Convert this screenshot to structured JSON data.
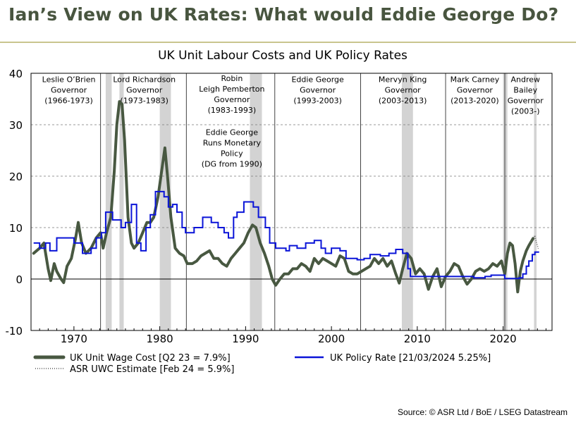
{
  "slide": {
    "title": "Ian’s View on UK Rates: What would Eddie George Do?",
    "source": "Source: © ASR Ltd  / BoE / LSEG Datastream"
  },
  "colors": {
    "wage": "#485841",
    "policy": "#0a14d8",
    "shade": "#d3d3d3",
    "title": "#48553f",
    "rule": "#c9c58e"
  },
  "chart_data": {
    "type": "line",
    "title": "UK Unit Labour Costs and UK Policy Rates",
    "xlim": [
      1965,
      2025.7
    ],
    "ylim": [
      -10,
      40
    ],
    "yticks": [
      40,
      30,
      20,
      10,
      0,
      -10
    ],
    "xticks": [
      1970,
      1980,
      1990,
      2000,
      2010,
      2020
    ],
    "grid": "horizontal dashed",
    "recessions": [
      [
        1973.7,
        1974.4
      ],
      [
        1975.3,
        1975.8
      ],
      [
        1980.0,
        1981.3
      ],
      [
        1990.5,
        1991.9
      ],
      [
        2008.2,
        2009.5
      ],
      [
        2020.0,
        2020.5
      ],
      [
        2023.6,
        2023.9
      ]
    ],
    "governor_boundaries": [
      1973.1,
      1983.1,
      1993.4,
      2003.4,
      2013.3,
      2020.2
    ],
    "annotations": [
      {
        "lines": [
          "Leslie O’Brien",
          "Governor",
          "(1966-1973)"
        ],
        "x": 1969.4,
        "y": 38.3
      },
      {
        "lines": [
          "Lord Richardson",
          "Governor",
          "(1973-1983)"
        ],
        "x": 1978.2,
        "y": 38.3
      },
      {
        "lines": [
          "Robin",
          "Leigh Pemberton",
          "Governor",
          "(1983-1993)"
        ],
        "x": 1988.4,
        "y": 38.5
      },
      {
        "lines": [
          "Eddie George",
          "Runs Monetary",
          "Policy",
          "(DG from 1990)"
        ],
        "x": 1988.4,
        "y": 28.0
      },
      {
        "lines": [
          "Eddie George",
          "Governor",
          "(1993-2003)"
        ],
        "x": 1998.4,
        "y": 38.3
      },
      {
        "lines": [
          "Mervyn King",
          "Governor",
          "(2003-2013)"
        ],
        "x": 2008.3,
        "y": 38.3
      },
      {
        "lines": [
          "Mark Carney",
          "Governor",
          "(2013-2020)"
        ],
        "x": 2016.7,
        "y": 38.3
      },
      {
        "lines": [
          "Andrew",
          "Bailey",
          "Governor",
          "(2003-)"
        ],
        "x": 2022.6,
        "y": 38.3
      }
    ],
    "series": [
      {
        "name": "UK Unit Wage Cost",
        "legend": "UK Unit Wage Cost  [Q2 23 = 7.9%]",
        "style": "thick",
        "points": [
          [
            1965.3,
            5.0
          ],
          [
            1966,
            6.0
          ],
          [
            1966.5,
            7.0
          ],
          [
            1967,
            2.0
          ],
          [
            1967.3,
            -0.3
          ],
          [
            1967.7,
            3.0
          ],
          [
            1968,
            1.5
          ],
          [
            1968.5,
            0.0
          ],
          [
            1968.8,
            -0.7
          ],
          [
            1969.2,
            2.5
          ],
          [
            1969.7,
            4.0
          ],
          [
            1970.2,
            8.0
          ],
          [
            1970.5,
            11.0
          ],
          [
            1970.9,
            7.0
          ],
          [
            1971.4,
            5.0
          ],
          [
            1972,
            6.0
          ],
          [
            1972.6,
            8.0
          ],
          [
            1973.1,
            9.0
          ],
          [
            1973.4,
            6.0
          ],
          [
            1973.8,
            9.0
          ],
          [
            1974.3,
            12.0
          ],
          [
            1974.7,
            21.0
          ],
          [
            1975.0,
            30.0
          ],
          [
            1975.3,
            34.5
          ],
          [
            1975.6,
            34.0
          ],
          [
            1975.9,
            27.0
          ],
          [
            1976.3,
            12.0
          ],
          [
            1976.7,
            7.0
          ],
          [
            1977.0,
            6.0
          ],
          [
            1977.5,
            7.0
          ],
          [
            1978.0,
            9.0
          ],
          [
            1978.5,
            11.0
          ],
          [
            1978.9,
            11.0
          ],
          [
            1979.3,
            12.0
          ],
          [
            1979.8,
            16.0
          ],
          [
            1980.3,
            22.0
          ],
          [
            1980.6,
            25.5
          ],
          [
            1980.9,
            20.0
          ],
          [
            1981.3,
            12.0
          ],
          [
            1981.8,
            6.0
          ],
          [
            1982.3,
            5.0
          ],
          [
            1982.8,
            4.5
          ],
          [
            1983.2,
            3.0
          ],
          [
            1983.8,
            3.0
          ],
          [
            1984.3,
            3.5
          ],
          [
            1984.8,
            4.5
          ],
          [
            1985.3,
            5.0
          ],
          [
            1985.8,
            5.5
          ],
          [
            1986.3,
            4.0
          ],
          [
            1986.8,
            4.0
          ],
          [
            1987.3,
            3.0
          ],
          [
            1987.8,
            2.5
          ],
          [
            1988.3,
            4.0
          ],
          [
            1988.8,
            5.0
          ],
          [
            1989.3,
            6.0
          ],
          [
            1989.8,
            7.0
          ],
          [
            1990.3,
            9.0
          ],
          [
            1990.8,
            10.5
          ],
          [
            1991.2,
            10.0
          ],
          [
            1991.7,
            7.0
          ],
          [
            1992.2,
            5.0
          ],
          [
            1992.7,
            2.5
          ],
          [
            1993.1,
            0.0
          ],
          [
            1993.5,
            -1.2
          ],
          [
            1994.0,
            0.0
          ],
          [
            1994.5,
            1.0
          ],
          [
            1995.0,
            1.0
          ],
          [
            1995.5,
            2.0
          ],
          [
            1996.0,
            2.0
          ],
          [
            1996.5,
            3.0
          ],
          [
            1997.0,
            2.5
          ],
          [
            1997.5,
            1.5
          ],
          [
            1998.0,
            4.0
          ],
          [
            1998.5,
            3.0
          ],
          [
            1999.0,
            4.0
          ],
          [
            1999.5,
            3.5
          ],
          [
            2000.0,
            3.0
          ],
          [
            2000.5,
            2.5
          ],
          [
            2001.0,
            4.5
          ],
          [
            2001.5,
            4.0
          ],
          [
            2002.0,
            1.5
          ],
          [
            2002.5,
            1.0
          ],
          [
            2003.0,
            1.0
          ],
          [
            2003.5,
            1.5
          ],
          [
            2004.0,
            2.0
          ],
          [
            2004.5,
            2.5
          ],
          [
            2005.0,
            4.0
          ],
          [
            2005.5,
            3.0
          ],
          [
            2006.0,
            4.0
          ],
          [
            2006.5,
            2.5
          ],
          [
            2007.0,
            3.5
          ],
          [
            2007.5,
            1.0
          ],
          [
            2007.9,
            -0.8
          ],
          [
            2008.3,
            2.0
          ],
          [
            2008.8,
            5.0
          ],
          [
            2009.3,
            4.0
          ],
          [
            2009.8,
            1.0
          ],
          [
            2010.3,
            2.0
          ],
          [
            2010.8,
            1.0
          ],
          [
            2011.3,
            -2.0
          ],
          [
            2011.8,
            0.5
          ],
          [
            2012.3,
            2.0
          ],
          [
            2012.8,
            -1.5
          ],
          [
            2013.3,
            0.5
          ],
          [
            2013.8,
            1.5
          ],
          [
            2014.3,
            3.0
          ],
          [
            2014.8,
            2.5
          ],
          [
            2015.3,
            0.5
          ],
          [
            2015.8,
            -1.0
          ],
          [
            2016.3,
            0.0
          ],
          [
            2016.8,
            1.5
          ],
          [
            2017.3,
            2.0
          ],
          [
            2017.8,
            1.5
          ],
          [
            2018.3,
            2.0
          ],
          [
            2018.8,
            3.0
          ],
          [
            2019.3,
            2.5
          ],
          [
            2019.8,
            3.5
          ],
          [
            2020.2,
            1.0
          ],
          [
            2020.5,
            5.0
          ],
          [
            2020.8,
            7.0
          ],
          [
            2021.1,
            6.5
          ],
          [
            2021.4,
            3.0
          ],
          [
            2021.7,
            -2.5
          ],
          [
            2022.0,
            1.5
          ],
          [
            2022.3,
            3.5
          ],
          [
            2022.7,
            5.5
          ],
          [
            2023.0,
            6.5
          ],
          [
            2023.5,
            7.9
          ]
        ]
      },
      {
        "name": "UK Policy Rate",
        "legend": "UK Policy Rate [21/03/2024 5.25%]",
        "style": "step",
        "points": [
          [
            1965.3,
            7.0
          ],
          [
            1966.0,
            6.0
          ],
          [
            1966.7,
            7.0
          ],
          [
            1967.2,
            5.5
          ],
          [
            1968.0,
            8.0
          ],
          [
            1969.0,
            8.0
          ],
          [
            1970.0,
            7.0
          ],
          [
            1971.0,
            5.0
          ],
          [
            1972.0,
            6.0
          ],
          [
            1972.6,
            8.0
          ],
          [
            1973.2,
            9.0
          ],
          [
            1973.7,
            13.0
          ],
          [
            1974.5,
            11.5
          ],
          [
            1975.5,
            10.0
          ],
          [
            1976.0,
            11.0
          ],
          [
            1976.7,
            14.5
          ],
          [
            1977.3,
            7.0
          ],
          [
            1977.8,
            5.5
          ],
          [
            1978.4,
            10.0
          ],
          [
            1978.9,
            12.5
          ],
          [
            1979.5,
            17.0
          ],
          [
            1980.5,
            16.0
          ],
          [
            1981.0,
            14.0
          ],
          [
            1981.5,
            14.5
          ],
          [
            1982.0,
            13.0
          ],
          [
            1982.6,
            10.0
          ],
          [
            1983.0,
            9.0
          ],
          [
            1984.0,
            10.0
          ],
          [
            1985.0,
            12.0
          ],
          [
            1986.0,
            11.0
          ],
          [
            1986.8,
            10.0
          ],
          [
            1987.5,
            9.0
          ],
          [
            1988.0,
            8.0
          ],
          [
            1988.6,
            12.0
          ],
          [
            1989.0,
            13.0
          ],
          [
            1989.8,
            15.0
          ],
          [
            1990.9,
            14.0
          ],
          [
            1991.5,
            12.0
          ],
          [
            1992.3,
            10.0
          ],
          [
            1992.8,
            7.0
          ],
          [
            1993.5,
            6.0
          ],
          [
            1994.7,
            5.5
          ],
          [
            1995.1,
            6.5
          ],
          [
            1996.0,
            6.0
          ],
          [
            1997.0,
            7.0
          ],
          [
            1998.0,
            7.5
          ],
          [
            1998.8,
            6.0
          ],
          [
            1999.3,
            5.0
          ],
          [
            2000.0,
            6.0
          ],
          [
            2001.0,
            5.5
          ],
          [
            2001.7,
            4.0
          ],
          [
            2003.0,
            3.75
          ],
          [
            2003.8,
            4.0
          ],
          [
            2004.5,
            4.75
          ],
          [
            2005.7,
            4.5
          ],
          [
            2006.7,
            5.0
          ],
          [
            2007.5,
            5.75
          ],
          [
            2008.3,
            5.0
          ],
          [
            2008.9,
            2.0
          ],
          [
            2009.2,
            0.5
          ],
          [
            2016.6,
            0.25
          ],
          [
            2017.9,
            0.5
          ],
          [
            2018.6,
            0.75
          ],
          [
            2020.2,
            0.1
          ],
          [
            2021.9,
            0.25
          ],
          [
            2022.3,
            1.0
          ],
          [
            2022.7,
            2.5
          ],
          [
            2023.0,
            3.5
          ],
          [
            2023.4,
            4.75
          ],
          [
            2023.7,
            5.25
          ],
          [
            2024.2,
            5.25
          ]
        ]
      },
      {
        "name": "ASR UWC Estimate",
        "legend": "ASR UWC Estimate [Feb 24 = 5.9%]",
        "style": "dotted",
        "points": [
          [
            2023.5,
            7.9
          ],
          [
            2023.7,
            8.5
          ],
          [
            2023.9,
            7.0
          ],
          [
            2024.1,
            5.9
          ]
        ]
      }
    ]
  }
}
